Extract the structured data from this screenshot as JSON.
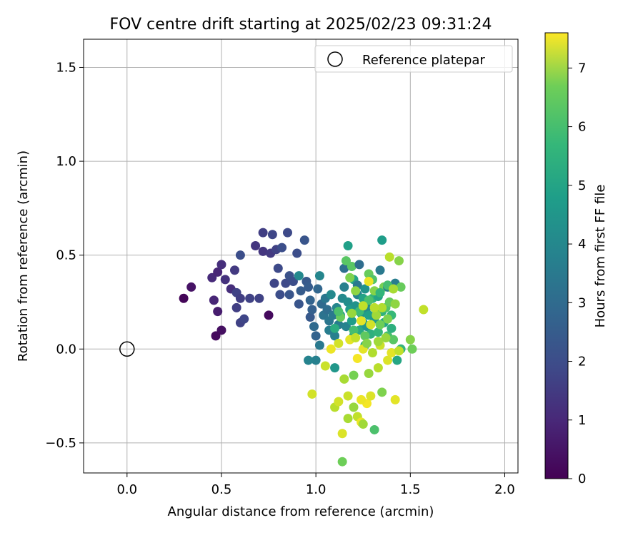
{
  "chart_data": {
    "type": "scatter",
    "title": "FOV centre drift starting at 2025/02/23 09:31:24",
    "xlabel": "Angular distance from reference (arcmin)",
    "ylabel": "Rotation from reference (arcmin)",
    "xlim": [
      -0.23,
      2.07
    ],
    "ylim": [
      -0.66,
      1.65
    ],
    "x_ticks": [
      0.0,
      0.5,
      1.0,
      1.5,
      2.0
    ],
    "x_tick_labels": [
      "0.0",
      "0.5",
      "1.0",
      "1.5",
      "2.0"
    ],
    "y_ticks": [
      -0.5,
      0.0,
      0.5,
      1.0,
      1.5
    ],
    "y_tick_labels": [
      "−0.5",
      "0.0",
      "0.5",
      "1.0",
      "1.5"
    ],
    "grid": true,
    "legend": {
      "position": "top-right",
      "entries": [
        {
          "label": "Reference platepar",
          "marker": "open-circle"
        }
      ]
    },
    "reference_point": {
      "x": 0.0,
      "y": 0.0
    },
    "colorbar": {
      "label": "Hours from first FF file",
      "range": [
        0,
        7.6
      ],
      "ticks": [
        0,
        1,
        2,
        3,
        4,
        5,
        6,
        7
      ],
      "tick_labels": [
        "0",
        "1",
        "2",
        "3",
        "4",
        "5",
        "6",
        "7"
      ],
      "colormap": "viridis"
    },
    "points": [
      [
        0.3,
        0.27,
        0.1
      ],
      [
        0.34,
        0.33,
        0.4
      ],
      [
        0.45,
        0.38,
        0.9
      ],
      [
        0.48,
        0.41,
        0.8
      ],
      [
        0.5,
        0.45,
        1.0
      ],
      [
        0.46,
        0.26,
        0.8
      ],
      [
        0.48,
        0.2,
        0.6
      ],
      [
        0.5,
        0.1,
        0.3
      ],
      [
        0.47,
        0.07,
        0.2
      ],
      [
        0.52,
        0.37,
        1.1
      ],
      [
        0.55,
        0.32,
        1.0
      ],
      [
        0.57,
        0.42,
        1.3
      ],
      [
        0.58,
        0.3,
        1.5
      ],
      [
        0.6,
        0.27,
        1.4
      ],
      [
        0.58,
        0.22,
        1.4
      ],
      [
        0.6,
        0.14,
        1.5
      ],
      [
        0.62,
        0.16,
        1.6
      ],
      [
        0.6,
        0.5,
        1.8
      ],
      [
        0.65,
        0.27,
        1.5
      ],
      [
        0.68,
        0.55,
        1.2
      ],
      [
        0.7,
        0.27,
        1.5
      ],
      [
        0.72,
        0.62,
        1.4
      ],
      [
        0.72,
        0.52,
        1.2
      ],
      [
        0.75,
        0.18,
        0.2
      ],
      [
        0.76,
        0.51,
        1.3
      ],
      [
        0.77,
        0.61,
        1.6
      ],
      [
        0.78,
        0.35,
        1.6
      ],
      [
        0.79,
        0.53,
        1.5
      ],
      [
        0.8,
        0.43,
        1.7
      ],
      [
        0.81,
        0.29,
        1.8
      ],
      [
        0.82,
        0.54,
        1.8
      ],
      [
        0.84,
        0.35,
        1.7
      ],
      [
        0.85,
        0.62,
        1.7
      ],
      [
        0.86,
        0.39,
        1.9
      ],
      [
        0.86,
        0.29,
        2.0
      ],
      [
        0.88,
        0.36,
        1.8
      ],
      [
        0.9,
        0.51,
        1.8
      ],
      [
        0.91,
        0.24,
        2.0
      ],
      [
        0.91,
        0.39,
        3.6
      ],
      [
        0.92,
        0.31,
        2.2
      ],
      [
        0.94,
        0.58,
        2.0
      ],
      [
        0.95,
        0.36,
        2.1
      ],
      [
        0.96,
        0.33,
        2.2
      ],
      [
        0.97,
        0.26,
        2.4
      ],
      [
        0.97,
        0.17,
        2.1
      ],
      [
        0.98,
        0.21,
        2.3
      ],
      [
        0.99,
        0.12,
        2.6
      ],
      [
        1.0,
        0.07,
        2.4
      ],
      [
        1.01,
        0.32,
        2.5
      ],
      [
        1.02,
        0.39,
        3.5
      ],
      [
        1.03,
        0.24,
        2.6
      ],
      [
        1.04,
        0.18,
        2.9
      ],
      [
        1.05,
        0.27,
        3.0
      ],
      [
        1.06,
        0.21,
        2.7
      ],
      [
        1.07,
        0.15,
        3.0
      ],
      [
        1.07,
        0.1,
        3.2
      ],
      [
        1.08,
        0.29,
        3.6
      ],
      [
        1.09,
        0.18,
        3.1
      ],
      [
        1.1,
        -0.1,
        4.0
      ],
      [
        1.1,
        0.07,
        3.3
      ],
      [
        1.11,
        0.22,
        3.5
      ],
      [
        1.12,
        0.13,
        3.2
      ],
      [
        1.13,
        0.18,
        4.0
      ],
      [
        1.14,
        0.27,
        3.6
      ],
      [
        1.15,
        0.33,
        3.3
      ],
      [
        1.15,
        0.43,
        2.8
      ],
      [
        1.16,
        0.12,
        3.4
      ],
      [
        1.17,
        0.55,
        4.3
      ],
      [
        1.17,
        0.25,
        3.7
      ],
      [
        1.18,
        0.21,
        4.1
      ],
      [
        1.19,
        0.44,
        5.6
      ],
      [
        1.19,
        0.15,
        4.2
      ],
      [
        1.2,
        0.37,
        4.4
      ],
      [
        1.2,
        0.07,
        4.5
      ],
      [
        1.21,
        0.23,
        3.9
      ],
      [
        1.22,
        0.29,
        3.4
      ],
      [
        1.22,
        0.34,
        3.1
      ],
      [
        1.23,
        0.45,
        2.7
      ],
      [
        1.23,
        0.1,
        4.6
      ],
      [
        1.24,
        0.19,
        4.0
      ],
      [
        1.25,
        0.14,
        4.2
      ],
      [
        1.25,
        0.27,
        4.4
      ],
      [
        1.26,
        0.02,
        4.9
      ],
      [
        1.26,
        0.32,
        3.9
      ],
      [
        1.27,
        0.22,
        3.6
      ],
      [
        1.27,
        0.12,
        4.0
      ],
      [
        1.28,
        0.4,
        5.8
      ],
      [
        1.28,
        0.18,
        4.3
      ],
      [
        1.29,
        0.08,
        4.8
      ],
      [
        1.3,
        0.27,
        5.0
      ],
      [
        1.3,
        0.37,
        5.5
      ],
      [
        1.31,
        -0.43,
        5.4
      ],
      [
        1.31,
        0.16,
        4.1
      ],
      [
        1.32,
        0.21,
        4.6
      ],
      [
        1.33,
        0.28,
        4.4
      ],
      [
        1.33,
        0.09,
        5.0
      ],
      [
        1.34,
        0.42,
        3.1
      ],
      [
        1.35,
        0.58,
        4.2
      ],
      [
        1.35,
        0.2,
        4.9
      ],
      [
        1.36,
        0.14,
        4.5
      ],
      [
        1.36,
        0.33,
        6.0
      ],
      [
        1.37,
        0.22,
        5.5
      ],
      [
        1.38,
        0.07,
        5.3
      ],
      [
        1.38,
        0.33,
        3.2
      ],
      [
        1.39,
        0.49,
        6.8
      ],
      [
        1.39,
        0.25,
        5.8
      ],
      [
        1.4,
        0.11,
        4.8
      ],
      [
        1.41,
        0.05,
        5.6
      ],
      [
        1.42,
        0.35,
        3.2
      ],
      [
        1.43,
        -0.06,
        4.5
      ],
      [
        1.44,
        0.47,
        6.2
      ],
      [
        1.45,
        0.33,
        5.8
      ],
      [
        1.45,
        0.0,
        5.0
      ],
      [
        1.5,
        0.05,
        6.2
      ],
      [
        1.51,
        0.0,
        5.9
      ],
      [
        1.57,
        0.21,
        6.9
      ],
      [
        1.14,
        -0.6,
        5.9
      ],
      [
        1.14,
        -0.45,
        7.2
      ],
      [
        1.17,
        -0.37,
        6.6
      ],
      [
        1.2,
        -0.31,
        6.4
      ],
      [
        1.22,
        -0.36,
        6.9
      ],
      [
        1.24,
        -0.39,
        7.4
      ],
      [
        1.25,
        -0.4,
        6.5
      ],
      [
        1.27,
        -0.29,
        7.5
      ],
      [
        1.29,
        -0.25,
        7.2
      ],
      [
        1.35,
        -0.23,
        6.1
      ],
      [
        1.42,
        -0.27,
        7.3
      ],
      [
        1.1,
        -0.31,
        6.8
      ],
      [
        1.12,
        -0.28,
        7.1
      ],
      [
        1.17,
        -0.25,
        7.0
      ],
      [
        0.98,
        -0.24,
        7.1
      ],
      [
        1.15,
        -0.16,
        6.6
      ],
      [
        1.2,
        -0.14,
        6.0
      ],
      [
        1.24,
        -0.27,
        7.4
      ],
      [
        1.28,
        -0.13,
        6.4
      ],
      [
        1.33,
        -0.1,
        6.8
      ],
      [
        1.38,
        -0.06,
        7.2
      ],
      [
        1.0,
        -0.06,
        3.3
      ],
      [
        0.96,
        -0.06,
        3.4
      ],
      [
        1.02,
        0.02,
        3.1
      ],
      [
        1.05,
        -0.09,
        7.0
      ],
      [
        1.08,
        0.0,
        7.4
      ],
      [
        1.12,
        0.03,
        7.1
      ],
      [
        1.18,
        0.05,
        7.3
      ],
      [
        1.22,
        -0.05,
        7.5
      ],
      [
        1.25,
        0.0,
        7.3
      ],
      [
        1.3,
        -0.02,
        6.7
      ],
      [
        1.34,
        0.02,
        7.0
      ],
      [
        1.4,
        -0.02,
        7.3
      ],
      [
        1.44,
        -0.01,
        6.9
      ],
      [
        1.16,
        0.47,
        5.6
      ],
      [
        1.2,
        0.1,
        5.3
      ],
      [
        1.23,
        0.2,
        5.2
      ],
      [
        1.26,
        0.07,
        5.7
      ],
      [
        1.28,
        0.26,
        5.4
      ],
      [
        1.31,
        0.31,
        6.2
      ],
      [
        1.34,
        0.13,
        5.9
      ],
      [
        1.37,
        0.06,
        6.4
      ],
      [
        1.4,
        0.18,
        5.1
      ],
      [
        1.42,
        0.24,
        6.3
      ],
      [
        1.1,
        0.11,
        4.7
      ],
      [
        1.13,
        0.17,
        5.8
      ],
      [
        1.19,
        0.19,
        6.4
      ],
      [
        1.21,
        0.06,
        6.9
      ],
      [
        1.24,
        0.15,
        7.3
      ],
      [
        1.27,
        0.03,
        6.2
      ],
      [
        1.29,
        0.13,
        7.1
      ],
      [
        1.32,
        0.18,
        6.5
      ],
      [
        1.35,
        0.22,
        6.7
      ],
      [
        1.38,
        0.16,
        6.1
      ],
      [
        1.12,
        0.2,
        5.4
      ],
      [
        1.18,
        0.38,
        6.1
      ],
      [
        1.21,
        0.31,
        6.3
      ],
      [
        1.25,
        0.23,
        6.9
      ],
      [
        1.28,
        0.36,
        7.4
      ],
      [
        1.31,
        0.22,
        6.8
      ],
      [
        1.34,
        0.3,
        5.0
      ],
      [
        1.38,
        0.34,
        5.3
      ],
      [
        1.41,
        0.32,
        6.6
      ],
      [
        1.33,
        0.04,
        6.5
      ]
    ]
  }
}
